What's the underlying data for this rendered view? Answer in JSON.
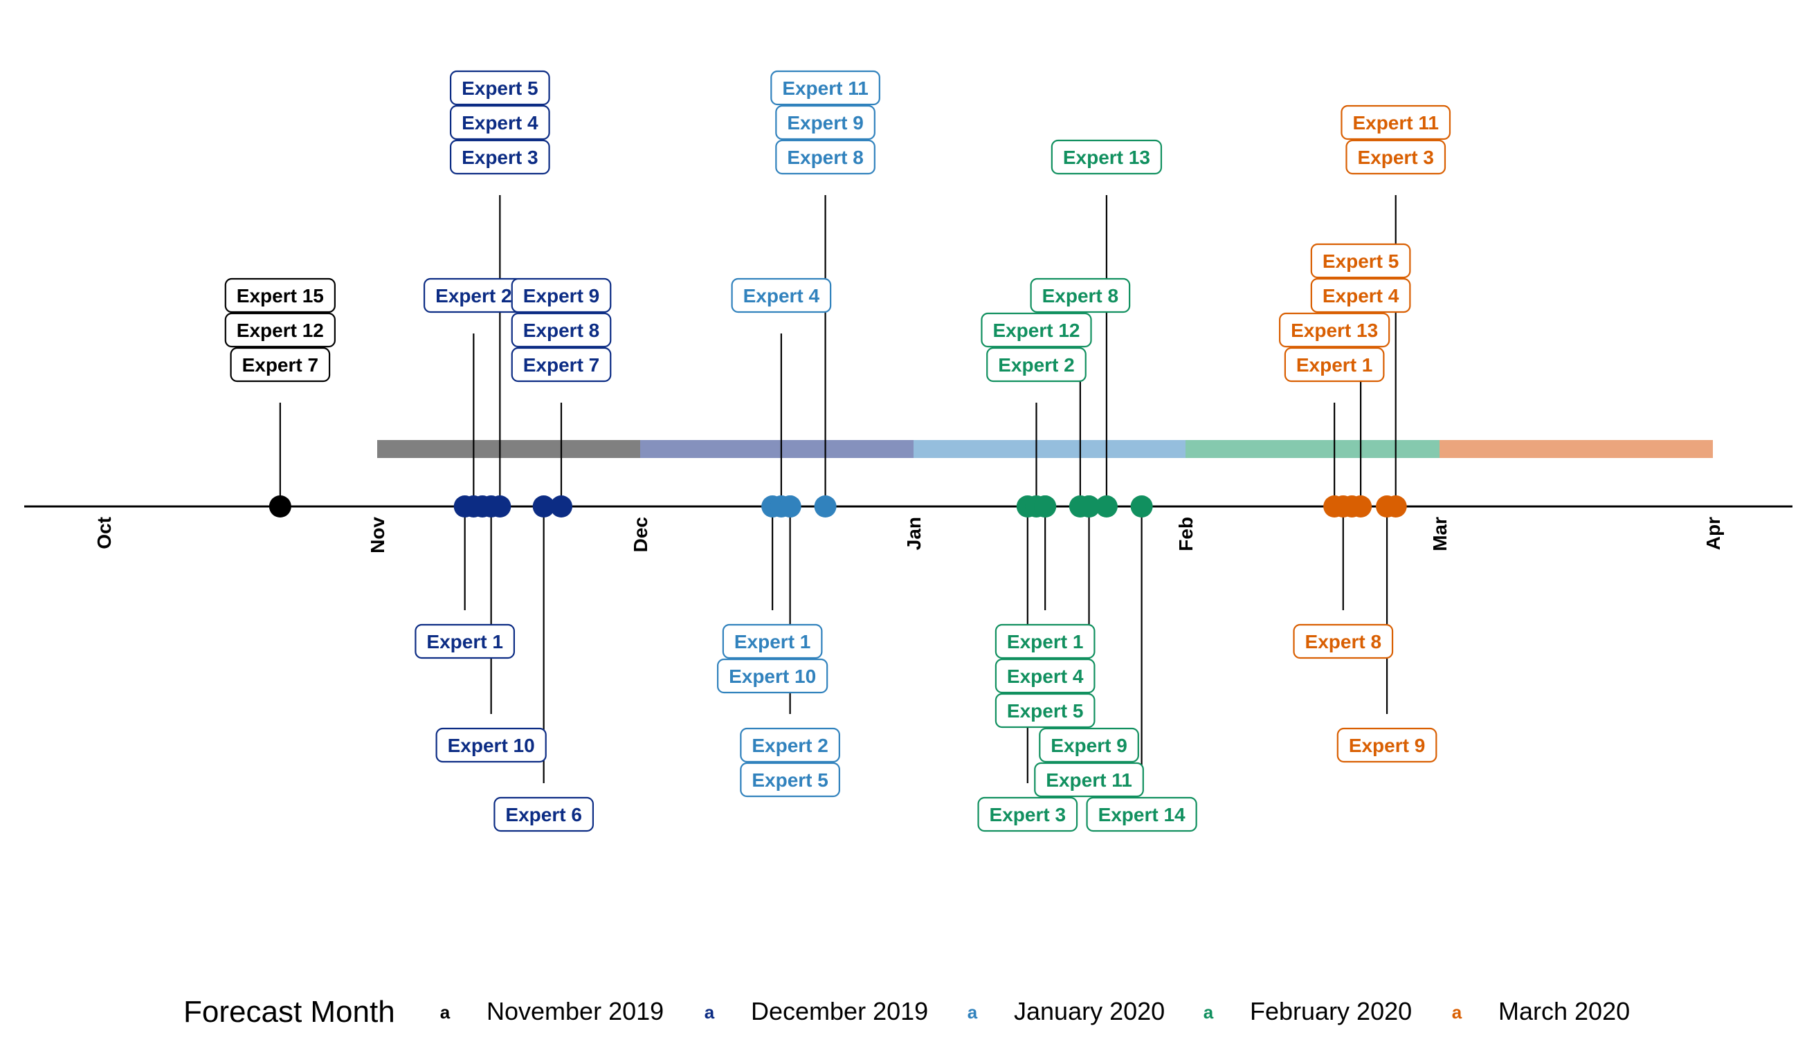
{
  "chart_data": {
    "type": "timeline",
    "legend": {
      "title": "Forecast Month",
      "key_glyph": "a",
      "placement": "bottom"
    },
    "series": [
      {
        "name": "November 2019",
        "color": "#000000",
        "band": [
          "2019-11-01",
          "2019-12-01"
        ],
        "band_color": "#808080"
      },
      {
        "name": "December 2019",
        "color": "#0c2c84",
        "band": [
          "2019-12-01",
          "2020-01-01"
        ],
        "band_color": "#8591bd"
      },
      {
        "name": "January 2020",
        "color": "#3182bd",
        "band": [
          "2020-01-01",
          "2020-02-01"
        ],
        "band_color": "#95bedd"
      },
      {
        "name": "February 2020",
        "color": "#11905f",
        "band": [
          "2020-02-01",
          "2020-03-01"
        ],
        "band_color": "#85c9ae"
      },
      {
        "name": "March 2020",
        "color": "#d95f02",
        "band": [
          "2020-03-01",
          "2020-04-01"
        ],
        "band_color": "#eba57d"
      }
    ],
    "x_range": [
      "2019-09-27",
      "2020-04-09"
    ],
    "x_ticks": [
      {
        "label": "Oct",
        "date": "2019-10-01"
      },
      {
        "label": "Nov",
        "date": "2019-11-01"
      },
      {
        "label": "Dec",
        "date": "2019-12-01"
      },
      {
        "label": "Jan",
        "date": "2020-01-01"
      },
      {
        "label": "Feb",
        "date": "2020-02-01"
      },
      {
        "label": "Mar",
        "date": "2020-03-01"
      },
      {
        "label": "Apr",
        "date": "2020-04-01"
      }
    ],
    "events": [
      {
        "series": 0,
        "date": "2019-10-21",
        "side": "up",
        "level": 3,
        "labels": [
          "Expert 15",
          "Expert 12",
          "Expert 7"
        ]
      },
      {
        "series": 1,
        "date": "2019-11-11",
        "side": "down",
        "level": 3,
        "labels": [
          "Expert 1"
        ]
      },
      {
        "series": 1,
        "date": "2019-11-12",
        "side": "up",
        "level": 5,
        "labels": [
          "Expert 2"
        ]
      },
      {
        "series": 1,
        "date": "2019-11-14",
        "side": "down",
        "level": 6,
        "labels": [
          "Expert 10"
        ]
      },
      {
        "series": 1,
        "date": "2019-11-15",
        "side": "up",
        "level": 9,
        "labels": [
          "Expert 5",
          "Expert 4",
          "Expert 3"
        ]
      },
      {
        "series": 1,
        "date": "2019-11-20",
        "side": "down",
        "level": 8,
        "labels": [
          "Expert 6"
        ]
      },
      {
        "series": 1,
        "date": "2019-11-22",
        "side": "up",
        "level": 3,
        "labels": [
          "Expert 9",
          "Expert 8",
          "Expert 7"
        ]
      },
      {
        "series": 2,
        "date": "2019-12-16",
        "side": "down",
        "level": 3,
        "labels": [
          "Expert 1",
          "Expert 10"
        ]
      },
      {
        "series": 2,
        "date": "2019-12-17",
        "side": "up",
        "level": 5,
        "labels": [
          "Expert 4"
        ]
      },
      {
        "series": 2,
        "date": "2019-12-18",
        "side": "down",
        "level": 6,
        "labels": [
          "Expert 2",
          "Expert 5"
        ]
      },
      {
        "series": 2,
        "date": "2019-12-22",
        "side": "up",
        "level": 9,
        "labels": [
          "Expert 11",
          "Expert 9",
          "Expert 8"
        ]
      },
      {
        "series": 3,
        "date": "2020-01-14",
        "side": "down",
        "level": 8,
        "labels": [
          "Expert 3"
        ]
      },
      {
        "series": 3,
        "date": "2020-01-15",
        "side": "up",
        "level": 3,
        "labels": [
          "Expert 12",
          "Expert 2"
        ]
      },
      {
        "series": 3,
        "date": "2020-01-16",
        "side": "down",
        "level": 3,
        "labels": [
          "Expert 1",
          "Expert 4",
          "Expert 5"
        ]
      },
      {
        "series": 3,
        "date": "2020-01-20",
        "side": "up",
        "level": 5,
        "labels": [
          "Expert 8"
        ]
      },
      {
        "series": 3,
        "date": "2020-01-21",
        "side": "down",
        "level": 6,
        "labels": [
          "Expert 9",
          "Expert 11"
        ]
      },
      {
        "series": 3,
        "date": "2020-01-23",
        "side": "up",
        "level": 9,
        "labels": [
          "Expert 13"
        ]
      },
      {
        "series": 3,
        "date": "2020-01-27",
        "side": "down",
        "level": 8,
        "labels": [
          "Expert 14"
        ]
      },
      {
        "series": 4,
        "date": "2020-02-18",
        "side": "up",
        "level": 3,
        "labels": [
          "Expert 13",
          "Expert 1"
        ]
      },
      {
        "series": 4,
        "date": "2020-02-19",
        "side": "down",
        "level": 3,
        "labels": [
          "Expert 8"
        ]
      },
      {
        "series": 4,
        "date": "2020-02-21",
        "side": "up",
        "level": 5,
        "labels": [
          "Expert 5",
          "Expert 4"
        ]
      },
      {
        "series": 4,
        "date": "2020-02-24",
        "side": "down",
        "level": 6,
        "labels": [
          "Expert 9"
        ]
      },
      {
        "series": 4,
        "date": "2020-02-25",
        "side": "up",
        "level": 9,
        "labels": [
          "Expert 11",
          "Expert 3"
        ]
      }
    ],
    "extra_points": [
      {
        "series": 1,
        "date": "2019-11-13"
      },
      {
        "series": 2,
        "date": "2019-12-18"
      },
      {
        "series": 3,
        "date": "2020-01-16"
      },
      {
        "series": 3,
        "date": "2020-01-21"
      },
      {
        "series": 4,
        "date": "2020-02-20"
      }
    ]
  }
}
